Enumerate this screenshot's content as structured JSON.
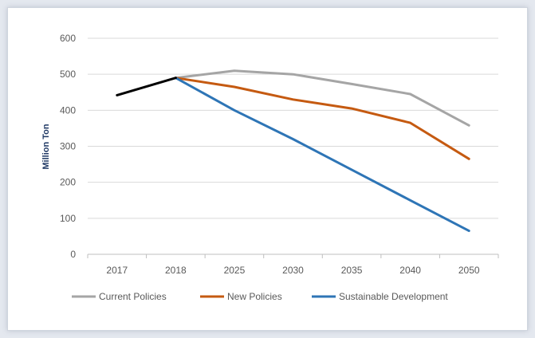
{
  "chart_data": {
    "type": "line",
    "title": "",
    "xlabel": "",
    "ylabel": "Million Ton",
    "categories": [
      "2017",
      "2018",
      "2025",
      "2030",
      "2035",
      "2040",
      "2050"
    ],
    "ylim": [
      0,
      600
    ],
    "yticks": [
      0,
      100,
      200,
      300,
      400,
      500,
      600
    ],
    "grid": true,
    "legend_position": "bottom",
    "historical": {
      "values": [
        442,
        490,
        null,
        null,
        null,
        null,
        null
      ],
      "color": "#000000"
    },
    "series": [
      {
        "name": "Current Policies",
        "color": "#a5a5a5",
        "values": [
          null,
          490,
          510,
          500,
          473,
          445,
          358
        ]
      },
      {
        "name": "New Policies",
        "color": "#c55a11",
        "values": [
          null,
          490,
          465,
          430,
          405,
          365,
          265
        ]
      },
      {
        "name": "Sustainable Development",
        "color": "#2e75b6",
        "values": [
          null,
          490,
          400,
          320,
          235,
          150,
          65
        ]
      }
    ]
  }
}
